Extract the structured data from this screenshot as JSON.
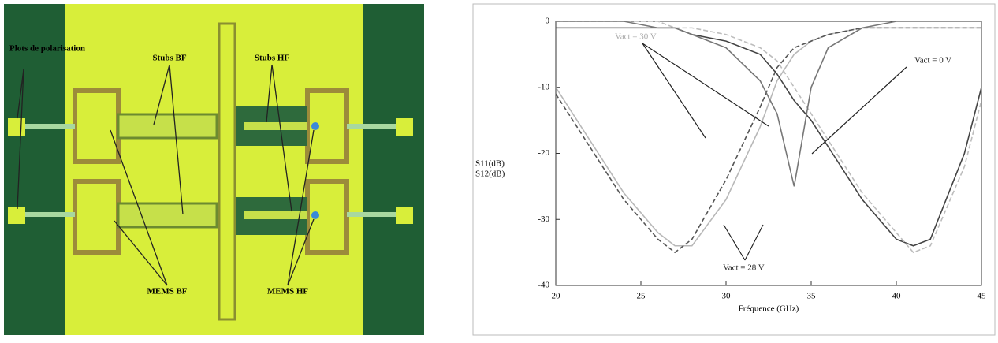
{
  "photo": {
    "labels": [
      "Plots de polarisation",
      "Stubs BF",
      "Stubs HF",
      "MEMS BF",
      "MEMS HF"
    ]
  },
  "chart_data": {
    "type": "line",
    "x_label": "Fréquence (GHz)",
    "y_label": [
      "S11(dB)",
      "S12(dB)"
    ],
    "x": [
      20,
      22,
      24,
      26,
      27,
      28,
      30,
      32,
      33,
      34,
      35,
      36,
      38,
      40,
      41,
      42,
      44,
      45
    ],
    "series": [
      {
        "color": "#b8b8b8",
        "values": [
          -10,
          -18,
          -26,
          -32,
          -34,
          -34,
          -27,
          -16,
          -9,
          -5,
          -3,
          -2,
          -1,
          -1,
          -1,
          -1,
          -1,
          -1
        ]
      },
      {
        "color": "#555555",
        "values": [
          -11,
          -19,
          -27,
          -33,
          -35,
          -33,
          -24,
          -13,
          -7,
          -4,
          -3,
          -2,
          -1,
          -1,
          -1,
          -1,
          -1,
          -1
        ]
      },
      {
        "color": "#444444",
        "values": [
          -1,
          -1,
          -1,
          -1,
          -1,
          -2,
          -3,
          -5,
          -8,
          -12,
          -15,
          -19,
          -27,
          -33,
          -34,
          -33,
          -20,
          -10
        ]
      },
      {
        "color": "#bdbdbd",
        "values": [
          0,
          0,
          0,
          0,
          -1,
          -1,
          -2,
          -4,
          -6,
          -10,
          -14,
          -18,
          -26,
          -32,
          -35,
          -34,
          -22,
          -12
        ]
      },
      {
        "color": "#777777",
        "values": [
          0,
          0,
          0,
          -1,
          -1,
          -2,
          -4,
          -9,
          -14,
          -25,
          -10,
          -4,
          -1,
          0,
          0,
          0,
          0,
          0
        ]
      }
    ],
    "xlim": [
      20,
      45
    ],
    "xticks": [
      20,
      25,
      30,
      35,
      40,
      45
    ],
    "ylim": [
      -40,
      0
    ],
    "yticks": [
      0,
      -10,
      -20,
      -30,
      -40
    ],
    "annotations": [
      "Vact = 30 V",
      "Vact = 0 V",
      "Vact = 28 V"
    ]
  }
}
